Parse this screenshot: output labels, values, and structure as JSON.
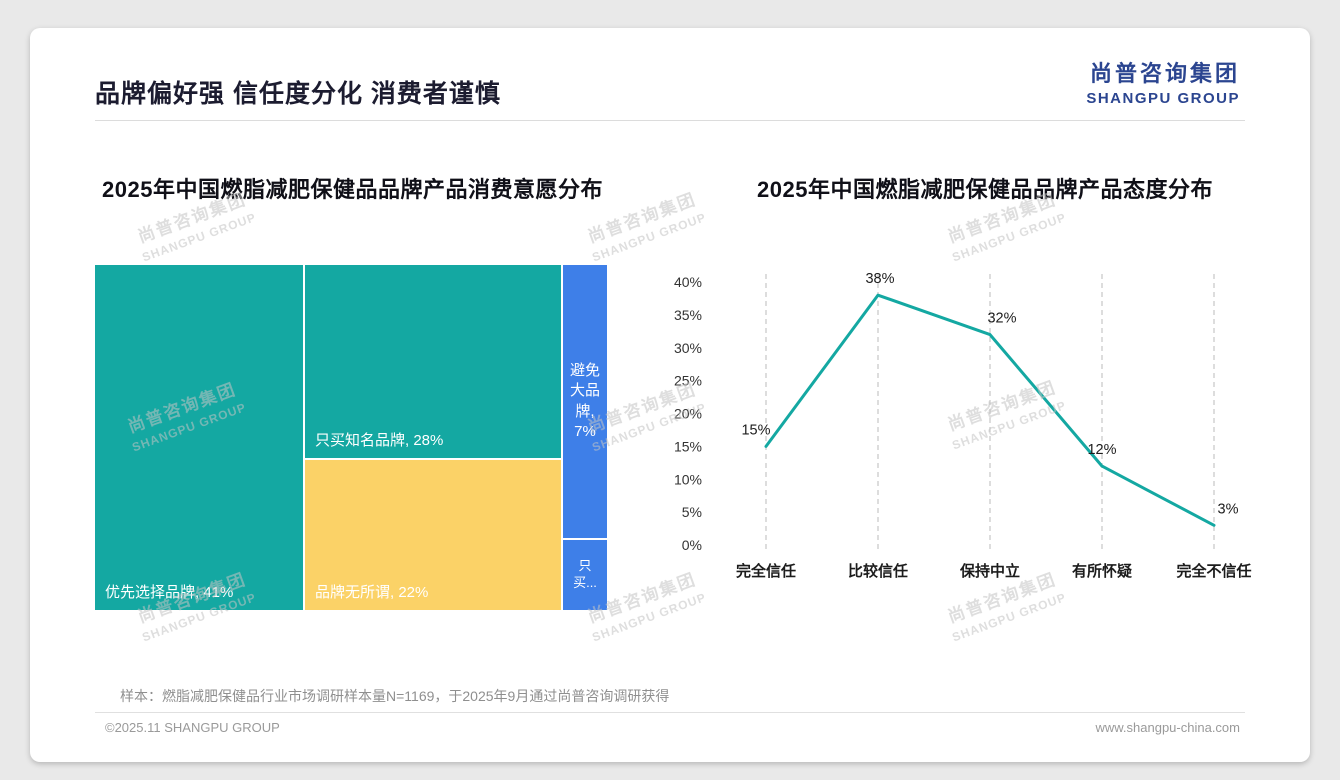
{
  "slide": {
    "title": "品牌偏好强 信任度分化 消费者谨慎",
    "logo": {
      "cn": "尚普咨询集团",
      "en": "SHANGPU GROUP"
    },
    "watermark": {
      "line1": "尚普咨询集团",
      "line2": "SHANGPU GROUP"
    },
    "sample_note": "样本：燃脂减肥保健品行业市场调研样本量N=1169，于2025年9月通过尚普咨询调研获得",
    "footer": {
      "left": "©2025.11 SHANGPU GROUP",
      "right": "www.shangpu-china.com"
    }
  },
  "colors": {
    "teal": "#14A8A2",
    "yellow": "#FBD267",
    "blue": "#3E7FE8",
    "navy": "#2B4590"
  },
  "chart_data": [
    {
      "type": "treemap",
      "title": "2025年中国燃脂减肥保健品品牌产品消费意愿分布",
      "blocks": [
        {
          "name": "优先选择品牌",
          "value": 41,
          "label": "优先选择品牌, 41%",
          "color": "#14A8A2"
        },
        {
          "name": "只买知名品牌",
          "value": 28,
          "label": "只买知名品牌, 28%",
          "color": "#14A8A2"
        },
        {
          "name": "品牌无所谓",
          "value": 22,
          "label": "品牌无所谓, 22%",
          "color": "#FBD267"
        },
        {
          "name": "避免大品牌",
          "value": 7,
          "label": "避免大品牌, 7%",
          "color": "#3E7FE8"
        },
        {
          "name": "只买(截断)",
          "label": "只买...",
          "color": "#3E7FE8"
        }
      ]
    },
    {
      "type": "line",
      "title": "2025年中国燃脂减肥保健品品牌产品态度分布",
      "categories": [
        "完全信任",
        "比较信任",
        "保持中立",
        "有所怀疑",
        "完全不信任"
      ],
      "values": [
        15,
        38,
        32,
        12,
        3
      ],
      "labels": [
        "15%",
        "38%",
        "32%",
        "12%",
        "3%"
      ],
      "ylim": [
        0,
        40
      ],
      "ytick_step": 5,
      "ytick_labels": [
        "0%",
        "5%",
        "10%",
        "15%",
        "20%",
        "25%",
        "30%",
        "35%",
        "40%"
      ],
      "grid": "dashed-vertical",
      "legend": "none",
      "line_color": "#14A8A2"
    }
  ]
}
